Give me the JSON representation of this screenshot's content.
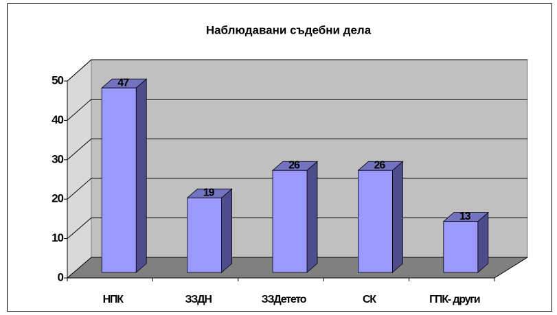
{
  "chart_data": {
    "type": "bar",
    "title": "Наблюдавани съдебни дела",
    "categories": [
      "НПК",
      "ЗЗДН",
      "ЗЗДетето",
      "СК",
      "ГПК- други"
    ],
    "values": [
      47,
      19,
      26,
      26,
      13
    ],
    "color": "#9999ff",
    "ylim": [
      0,
      50
    ],
    "yticks": [
      0,
      10,
      20,
      30,
      40,
      50
    ],
    "grid": true
  }
}
